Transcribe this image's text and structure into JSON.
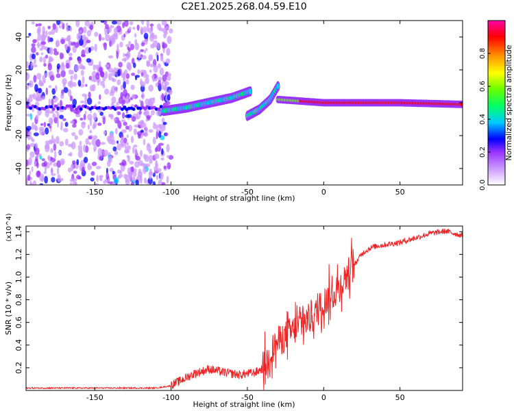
{
  "title": "C2E1.2025.268.04.59.E10",
  "chart_data": [
    {
      "type": "heatmap",
      "xlabel": "Height of straight line (km)",
      "ylabel": "Frequency (Hz)",
      "xlim": [
        -195,
        91
      ],
      "ylim": [
        -50,
        50
      ],
      "xticks": [
        -150,
        -100,
        -50,
        0,
        50
      ],
      "yticks": [
        -40,
        -20,
        0,
        20,
        40
      ],
      "colorbar": {
        "label": "Normalized spectral amplitude",
        "range": [
          0.0,
          1.0
        ],
        "ticks": [
          0.0,
          0.2,
          0.4,
          0.6,
          0.8
        ],
        "colors": [
          "#ffffff",
          "#cc99ff",
          "#9933ff",
          "#0000ff",
          "#00ccff",
          "#00ff66",
          "#66ff00",
          "#ffff00",
          "#ff9900",
          "#ff0000",
          "#ff00aa"
        ]
      },
      "features": [
        {
          "name": "noise",
          "x_range": [
            -195,
            -100
          ],
          "f_range": [
            -50,
            50
          ],
          "amplitude": 0.2
        },
        {
          "name": "band-1",
          "x": [
            -105,
            -90,
            -75,
            -60,
            -48
          ],
          "f": [
            -5,
            -3,
            0,
            3,
            7
          ],
          "amplitude": 0.45
        },
        {
          "name": "band-2",
          "x": [
            -50,
            -42,
            -35,
            -30
          ],
          "f": [
            -8,
            -4,
            2,
            10
          ],
          "amplitude": 0.45
        },
        {
          "name": "carrier",
          "x": [
            -30,
            0,
            50,
            91
          ],
          "f": [
            2,
            0,
            0,
            -1
          ],
          "amplitude": 0.9
        }
      ]
    },
    {
      "type": "line",
      "xlabel": "Height of straight line (km)",
      "ylabel": "SNR (10 * v/v)",
      "scale_label": "(x10^4)",
      "xlim": [
        -195,
        91
      ],
      "ylim": [
        0,
        1.45
      ],
      "xticks": [
        -150,
        -100,
        -50,
        0,
        50
      ],
      "yticks": [
        0.2,
        0.4,
        0.6,
        0.8,
        1.0,
        1.2,
        1.4
      ],
      "series": [
        {
          "name": "SNR",
          "color": "#ee2222",
          "x": [
            -195,
            -150,
            -110,
            -100,
            -95,
            -85,
            -75,
            -65,
            -55,
            -45,
            -38,
            -35,
            -30,
            -25,
            -20,
            -15,
            -10,
            -5,
            0,
            5,
            10,
            15,
            20,
            25,
            30,
            35,
            40,
            50,
            60,
            70,
            80,
            91
          ],
          "y": [
            0.02,
            0.02,
            0.02,
            0.04,
            0.07,
            0.14,
            0.18,
            0.15,
            0.13,
            0.15,
            0.2,
            0.3,
            0.4,
            0.45,
            0.5,
            0.55,
            0.6,
            0.65,
            0.75,
            0.8,
            0.88,
            0.98,
            1.1,
            1.2,
            1.25,
            1.27,
            1.28,
            1.3,
            1.34,
            1.38,
            1.4,
            1.36
          ]
        }
      ]
    }
  ]
}
